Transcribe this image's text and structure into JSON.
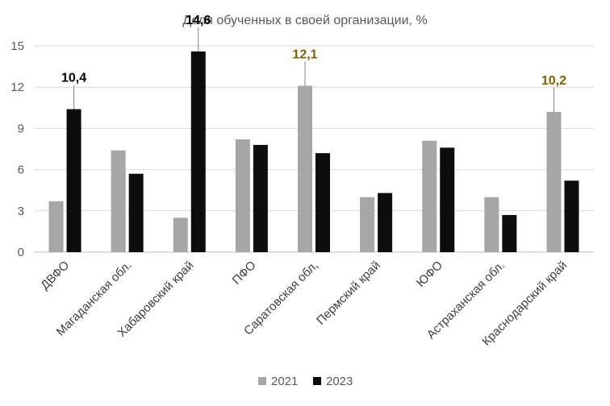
{
  "chart_data": {
    "type": "bar",
    "title": "Доля обученных в своей организации, %",
    "xlabel": "",
    "ylabel": "",
    "ylim": [
      0,
      15
    ],
    "yticks": [
      0,
      3,
      6,
      9,
      12,
      15
    ],
    "legend_position": "bottom",
    "categories": [
      "ДВФО",
      "Магаданская обл.",
      "Хабаровский край",
      "ПФО",
      "Саратовская обл,",
      "Пермский край",
      "ЮФО",
      "Астраханская обл.",
      "Краснодарский край"
    ],
    "series": [
      {
        "name": "2021",
        "color": "#a6a6a6",
        "values": [
          3.7,
          7.4,
          2.5,
          8.2,
          12.1,
          4.0,
          8.1,
          4.0,
          10.2
        ]
      },
      {
        "name": "2023",
        "color": "#0d0d0d",
        "values": [
          10.4,
          5.7,
          14.6,
          7.8,
          7.2,
          4.3,
          7.6,
          2.7,
          5.2
        ]
      }
    ],
    "annotations": [
      {
        "label": "10,4",
        "category_index": 0,
        "series_index": 1,
        "color": "#000000"
      },
      {
        "label": "14,6",
        "category_index": 2,
        "series_index": 1,
        "color": "#000000"
      },
      {
        "label": "12,1",
        "category_index": 4,
        "series_index": 0,
        "color": "#7f6000"
      },
      {
        "label": "10,2",
        "category_index": 8,
        "series_index": 0,
        "color": "#7f6000"
      }
    ]
  }
}
